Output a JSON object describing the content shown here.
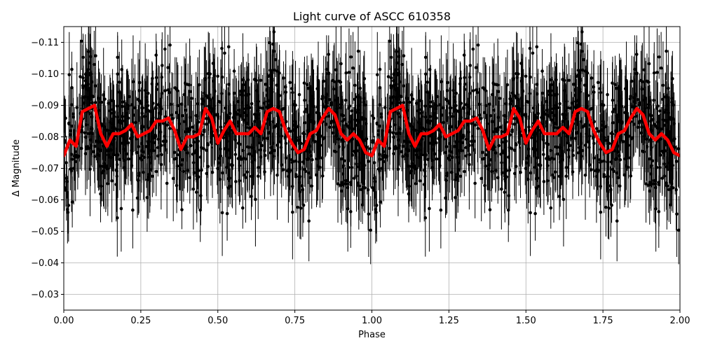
{
  "chart_data": {
    "type": "scatter",
    "title": "Light curve of ASCC 610358",
    "xlabel": "Phase",
    "ylabel": "Δ Magnitude",
    "xlim": [
      0,
      2
    ],
    "ylim": [
      -0.025,
      -0.115
    ],
    "y_inverted": true,
    "grid": true,
    "x_ticks": [
      0,
      0.25,
      0.5,
      0.75,
      1.0,
      1.25,
      1.5,
      1.75,
      2.0
    ],
    "x_tick_labels": [
      "0.00",
      "0.25",
      "0.50",
      "0.75",
      "1.00",
      "1.25",
      "1.50",
      "1.75",
      "2.00"
    ],
    "y_ticks": [
      -0.03,
      -0.04,
      -0.05,
      -0.06,
      -0.07,
      -0.08,
      -0.09,
      -0.1,
      -0.11
    ],
    "y_tick_labels": [
      "−0.03",
      "−0.04",
      "−0.05",
      "−0.06",
      "−0.07",
      "−0.08",
      "−0.09",
      "−0.10",
      "−0.11"
    ],
    "series": [
      {
        "kind": "errorbar-points",
        "color": "#000000",
        "marker": "circle",
        "description_of_distribution": "dense observations centered near −0.08 with scatter roughly ±0.03 and error bars; pattern repeats with period 1 in phase",
        "count": 2000,
        "center": -0.08,
        "spread": 0.01,
        "typical_error": 0.01
      },
      {
        "kind": "binned-line",
        "color": "#ff0000",
        "phase": [
          0.0,
          0.02,
          0.04,
          0.06,
          0.08,
          0.1,
          0.12,
          0.14,
          0.16,
          0.18,
          0.2,
          0.22,
          0.24,
          0.26,
          0.28,
          0.3,
          0.32,
          0.34,
          0.36,
          0.38,
          0.4,
          0.42,
          0.44,
          0.46,
          0.48,
          0.5,
          0.52,
          0.54,
          0.56,
          0.58,
          0.6,
          0.62,
          0.64,
          0.66,
          0.68,
          0.7,
          0.72,
          0.74,
          0.76,
          0.78,
          0.8,
          0.82,
          0.84,
          0.86,
          0.88,
          0.9,
          0.92,
          0.94,
          0.96,
          0.98,
          1.0
        ],
        "magnitude": [
          -0.074,
          -0.079,
          -0.077,
          -0.088,
          -0.089,
          -0.09,
          -0.081,
          -0.077,
          -0.081,
          -0.081,
          -0.082,
          -0.084,
          -0.08,
          -0.081,
          -0.082,
          -0.085,
          -0.085,
          -0.086,
          -0.082,
          -0.076,
          -0.08,
          -0.08,
          -0.081,
          -0.089,
          -0.086,
          -0.078,
          -0.082,
          -0.085,
          -0.081,
          -0.081,
          -0.081,
          -0.083,
          -0.081,
          -0.088,
          -0.089,
          -0.088,
          -0.082,
          -0.078,
          -0.075,
          -0.076,
          -0.081,
          -0.082,
          -0.086,
          -0.089,
          -0.087,
          -0.081,
          -0.079,
          -0.081,
          -0.079,
          -0.075,
          -0.074
        ]
      }
    ]
  }
}
